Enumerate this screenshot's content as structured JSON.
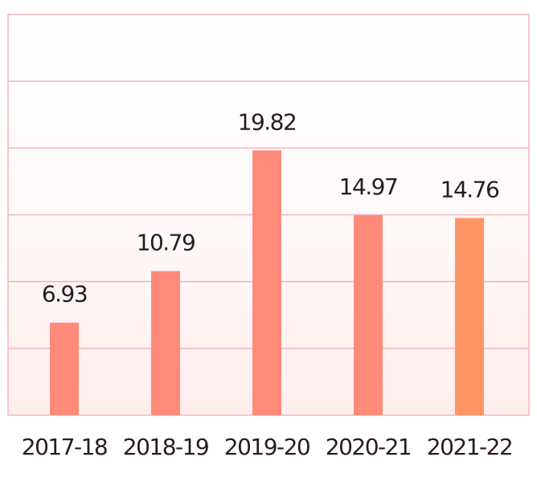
{
  "chart_data": {
    "type": "bar",
    "categories": [
      "2017-18",
      "2018-19",
      "2019-20",
      "2020-21",
      "2021-22"
    ],
    "values": [
      6.93,
      10.79,
      19.82,
      14.97,
      14.76
    ],
    "colors": [
      "#ff8a7a",
      "#ff8a7a",
      "#ff8a7a",
      "#ff8a7a",
      "#ff9563"
    ],
    "ylim": [
      0,
      30
    ],
    "yticks": [
      0,
      5,
      10,
      15,
      20,
      25,
      30
    ],
    "grid": true
  }
}
